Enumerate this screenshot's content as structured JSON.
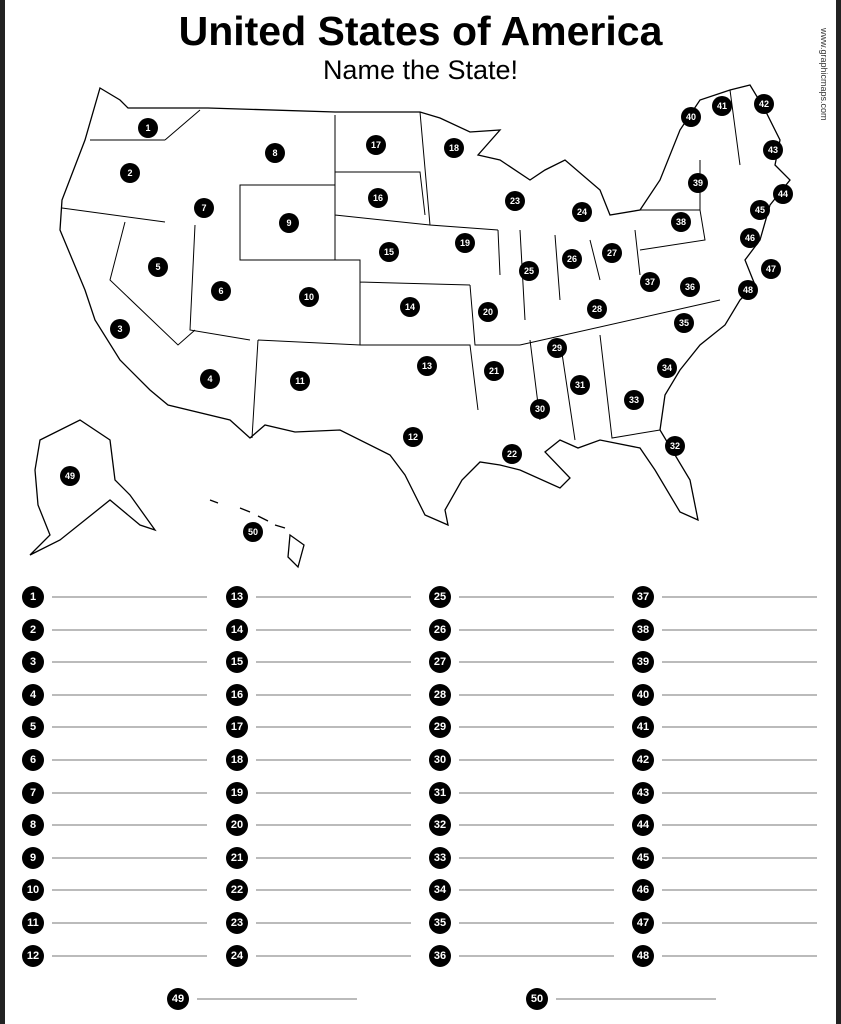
{
  "title": "United States of America",
  "subtitle": "Name the State!",
  "watermark": "www.graphicmaps.com",
  "map_markers": [
    "1",
    "2",
    "3",
    "4",
    "5",
    "6",
    "7",
    "8",
    "9",
    "10",
    "11",
    "12",
    "13",
    "14",
    "15",
    "16",
    "17",
    "18",
    "19",
    "20",
    "21",
    "22",
    "23",
    "24",
    "25",
    "26",
    "27",
    "28",
    "29",
    "30",
    "31",
    "32",
    "33",
    "34",
    "35",
    "36",
    "37",
    "38",
    "39",
    "40",
    "41",
    "42",
    "43",
    "44",
    "45",
    "46",
    "47",
    "48",
    "49",
    "50"
  ],
  "answer_list": [
    "1",
    "2",
    "3",
    "4",
    "5",
    "6",
    "7",
    "8",
    "9",
    "10",
    "11",
    "12",
    "13",
    "14",
    "15",
    "16",
    "17",
    "18",
    "19",
    "20",
    "21",
    "22",
    "23",
    "24",
    "25",
    "26",
    "27",
    "28",
    "29",
    "30",
    "31",
    "32",
    "33",
    "34",
    "35",
    "36",
    "37",
    "38",
    "39",
    "40",
    "41",
    "42",
    "43",
    "44",
    "45",
    "46",
    "47",
    "48",
    "49",
    "50"
  ]
}
